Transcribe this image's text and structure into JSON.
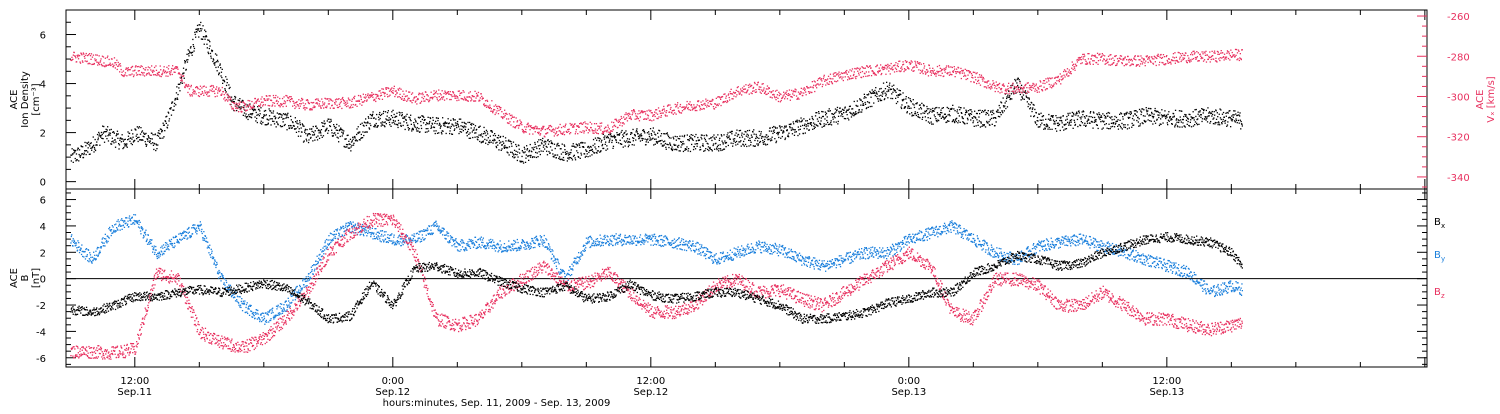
{
  "colors": {
    "black": "#000000",
    "red": "#e8305f",
    "blue": "#1a7fdc"
  },
  "chart_data": [
    {
      "type": "scatter",
      "panel": "top",
      "ylabel_lines": [
        "ACE",
        "Ion Density",
        "[cm⁻³]"
      ],
      "ylim": [
        -0.3,
        7.0
      ],
      "yticks": [
        0,
        2,
        4,
        6
      ],
      "y2label_lines": [
        "ACE",
        "Vₓ [km/s]"
      ],
      "y2lim": [
        -346,
        -257
      ],
      "y2ticks": [
        -340,
        -320,
        -300,
        -280,
        -260
      ],
      "x_unit": "hours since Sep. 11, 2009 00:00",
      "xlim": [
        8.8,
        72.1
      ],
      "series": [
        {
          "name": "Ion Density",
          "color": "#000000",
          "axis": "left",
          "x": [
            9.0,
            9.5,
            10.0,
            10.5,
            11.0,
            11.5,
            12.0,
            12.5,
            13.0,
            13.5,
            14.0,
            14.5,
            15.0,
            15.5,
            16.0,
            16.5,
            17.0,
            17.5,
            18.0,
            18.5,
            19.0,
            19.5,
            20.0,
            21.0,
            22.0,
            23.0,
            24.0,
            25.0,
            26.0,
            27.0,
            28.0,
            29.0,
            30.0,
            31.0,
            32.0,
            33.0,
            34.0,
            35.0,
            36.0,
            37.0,
            38.0,
            39.0,
            40.0,
            41.0,
            42.0,
            43.0,
            44.0,
            45.0,
            46.0,
            47.0,
            48.0,
            49.0,
            50.0,
            51.0,
            52.0,
            53.0,
            54.0,
            55.0,
            56.0,
            57.0,
            58.0,
            59.0,
            60.0,
            61.0,
            62.0,
            63.0,
            63.5
          ],
          "y": [
            1.0,
            1.2,
            1.5,
            2.0,
            1.8,
            1.6,
            2.0,
            1.8,
            1.6,
            2.5,
            3.8,
            5.2,
            6.3,
            5.4,
            4.5,
            3.3,
            3.0,
            2.8,
            2.7,
            2.6,
            2.5,
            2.3,
            1.8,
            2.3,
            1.6,
            2.6,
            2.6,
            2.4,
            2.3,
            2.3,
            2.0,
            1.6,
            1.1,
            1.5,
            1.2,
            1.3,
            1.7,
            1.8,
            1.9,
            1.6,
            1.6,
            1.6,
            1.8,
            1.8,
            2.0,
            2.3,
            2.6,
            2.8,
            3.3,
            3.8,
            3.1,
            2.7,
            2.8,
            2.6,
            2.6,
            4.0,
            2.5,
            2.4,
            2.6,
            2.5,
            2.5,
            2.7,
            2.6,
            2.6,
            2.7,
            2.6,
            2.5
          ]
        },
        {
          "name": "Vx",
          "color": "#e8305f",
          "axis": "right",
          "x": [
            9.0,
            10.0,
            11.0,
            11.5,
            12.0,
            13.0,
            14.0,
            14.5,
            15.0,
            16.0,
            16.5,
            17.0,
            18.0,
            19.0,
            20.0,
            21.0,
            22.0,
            23.0,
            24.0,
            25.0,
            26.0,
            27.0,
            28.0,
            29.0,
            30.0,
            31.0,
            32.0,
            33.0,
            34.0,
            35.0,
            36.0,
            37.0,
            38.0,
            39.0,
            40.0,
            41.0,
            42.0,
            43.0,
            44.0,
            45.0,
            46.0,
            47.0,
            48.0,
            49.0,
            50.0,
            51.0,
            52.0,
            53.0,
            54.0,
            55.0,
            56.0,
            57.0,
            58.0,
            59.0,
            60.0,
            61.0,
            62.0,
            63.0,
            63.5
          ],
          "y": [
            -280,
            -281,
            -283,
            -288,
            -287,
            -287,
            -287,
            -297,
            -297,
            -297,
            -304,
            -305,
            -302,
            -302,
            -304,
            -303,
            -303,
            -300,
            -297,
            -301,
            -299,
            -299,
            -300,
            -308,
            -315,
            -317,
            -316,
            -315,
            -316,
            -309,
            -309,
            -306,
            -304,
            -303,
            -297,
            -295,
            -300,
            -298,
            -292,
            -289,
            -287,
            -286,
            -284,
            -287,
            -287,
            -290,
            -295,
            -296,
            -295,
            -291,
            -281,
            -281,
            -282,
            -282,
            -281,
            -280,
            -280,
            -279,
            -279
          ]
        }
      ]
    },
    {
      "type": "scatter",
      "panel": "bottom",
      "ylabel_lines": [
        "ACE",
        "B",
        "[nT]"
      ],
      "ylim": [
        -6.7,
        6.8
      ],
      "yticks": [
        -6,
        -4,
        -2,
        0,
        2,
        4,
        6
      ],
      "x_unit": "hours since Sep. 11, 2009 00:00",
      "xlim": [
        8.8,
        72.1
      ],
      "xticks": [
        12,
        24,
        36,
        48,
        60
      ],
      "xtick_labels": [
        [
          "12:00",
          "Sep.11"
        ],
        [
          "0:00",
          "Sep.12"
        ],
        [
          "12:00",
          "Sep.12"
        ],
        [
          "0:00",
          "Sep.13"
        ],
        [
          "12:00",
          "Sep.13"
        ]
      ],
      "xlabel": "hours:minutes, Sep. 11, 2009 - Sep. 13, 2009",
      "zero_line": true,
      "series": [
        {
          "name": "Bx",
          "color": "#000000",
          "x": [
            9.0,
            10.0,
            11.0,
            12.0,
            13.0,
            14.0,
            15.0,
            16.0,
            17.0,
            18.0,
            19.0,
            20.0,
            21.0,
            22.0,
            23.0,
            24.0,
            25.0,
            26.0,
            27.0,
            28.0,
            29.0,
            30.0,
            31.0,
            32.0,
            33.0,
            34.0,
            35.0,
            36.0,
            37.0,
            38.0,
            39.0,
            40.0,
            41.0,
            42.0,
            43.0,
            44.0,
            45.0,
            46.0,
            47.0,
            48.0,
            49.0,
            50.0,
            51.0,
            52.0,
            53.0,
            54.0,
            55.0,
            56.0,
            57.0,
            58.0,
            59.0,
            60.0,
            61.0,
            62.0,
            63.0,
            63.5
          ],
          "y": [
            -2.3,
            -2.5,
            -2.0,
            -1.3,
            -1.3,
            -1.0,
            -0.8,
            -1.0,
            -0.7,
            -0.3,
            -0.7,
            -1.7,
            -3.0,
            -2.8,
            -0.3,
            -2.0,
            0.8,
            1.0,
            0.4,
            0.5,
            -0.2,
            -0.7,
            -1.0,
            -0.5,
            -1.5,
            -1.3,
            -0.4,
            -1.2,
            -1.5,
            -1.3,
            -1.0,
            -1.0,
            -1.5,
            -2.0,
            -3.0,
            -3.0,
            -2.8,
            -2.5,
            -1.8,
            -1.5,
            -1.0,
            -1.0,
            0.5,
            1.0,
            1.8,
            1.5,
            1.0,
            1.2,
            2.0,
            2.5,
            3.0,
            3.2,
            3.0,
            2.8,
            2.0,
            1.0
          ]
        },
        {
          "name": "By",
          "color": "#1a7fdc",
          "x": [
            9.0,
            10.0,
            11.0,
            12.0,
            13.0,
            14.0,
            15.0,
            16.0,
            17.0,
            18.0,
            19.0,
            20.0,
            21.0,
            22.0,
            23.0,
            24.0,
            25.0,
            26.0,
            27.0,
            28.0,
            29.0,
            30.0,
            31.0,
            32.0,
            33.0,
            34.0,
            35.0,
            36.0,
            37.0,
            38.0,
            39.0,
            40.0,
            41.0,
            42.0,
            43.0,
            44.0,
            45.0,
            46.0,
            47.0,
            48.0,
            49.0,
            50.0,
            51.0,
            52.0,
            53.0,
            54.0,
            55.0,
            56.0,
            57.0,
            58.0,
            59.0,
            60.0,
            61.0,
            62.0,
            63.0,
            63.5
          ],
          "y": [
            3.0,
            1.5,
            4.0,
            4.5,
            2.0,
            3.0,
            4.0,
            0.0,
            -2.0,
            -3.0,
            -2.0,
            0.0,
            3.0,
            4.0,
            3.5,
            3.0,
            3.0,
            4.0,
            2.5,
            2.8,
            2.5,
            2.6,
            3.0,
            0.0,
            2.8,
            3.0,
            3.0,
            3.0,
            2.8,
            2.5,
            1.5,
            2.0,
            2.5,
            2.2,
            1.5,
            1.0,
            1.5,
            2.0,
            2.0,
            3.0,
            3.5,
            4.0,
            3.0,
            2.0,
            1.5,
            2.5,
            2.8,
            3.0,
            2.5,
            2.0,
            1.5,
            1.0,
            0.5,
            -1.0,
            -0.5,
            -0.8
          ]
        },
        {
          "name": "Bz",
          "color": "#e8305f",
          "x": [
            9.0,
            10.0,
            11.0,
            12.0,
            13.0,
            14.0,
            15.0,
            16.0,
            17.0,
            18.0,
            19.0,
            20.0,
            21.0,
            22.0,
            23.0,
            24.0,
            25.0,
            26.0,
            27.0,
            28.0,
            29.0,
            30.0,
            31.0,
            32.0,
            33.0,
            34.0,
            35.0,
            36.0,
            37.0,
            38.0,
            39.0,
            40.0,
            41.0,
            42.0,
            43.0,
            44.0,
            45.0,
            46.0,
            47.0,
            48.0,
            49.0,
            50.0,
            51.0,
            52.0,
            53.0,
            54.0,
            55.0,
            56.0,
            57.0,
            58.0,
            59.0,
            60.0,
            61.0,
            62.0,
            63.0,
            63.5
          ],
          "y": [
            -5.5,
            -5.5,
            -5.6,
            -5.3,
            0.5,
            0.0,
            -4.0,
            -4.8,
            -5.2,
            -4.5,
            -3.0,
            -1.0,
            2.0,
            3.5,
            4.5,
            4.5,
            2.0,
            -3.0,
            -3.5,
            -3.0,
            -1.0,
            0.0,
            1.0,
            -0.5,
            -0.3,
            0.5,
            -1.0,
            -2.5,
            -2.5,
            -2.0,
            -0.5,
            0.0,
            -1.0,
            -0.8,
            -1.5,
            -2.0,
            -1.0,
            0.0,
            1.0,
            2.0,
            1.0,
            -2.5,
            -3.0,
            0.0,
            0.0,
            -0.5,
            -2.0,
            -2.0,
            -1.0,
            -2.0,
            -3.0,
            -3.0,
            -3.5,
            -3.8,
            -3.5,
            -3.3
          ]
        }
      ],
      "legend": [
        "Bx",
        "By",
        "Bz"
      ]
    }
  ]
}
